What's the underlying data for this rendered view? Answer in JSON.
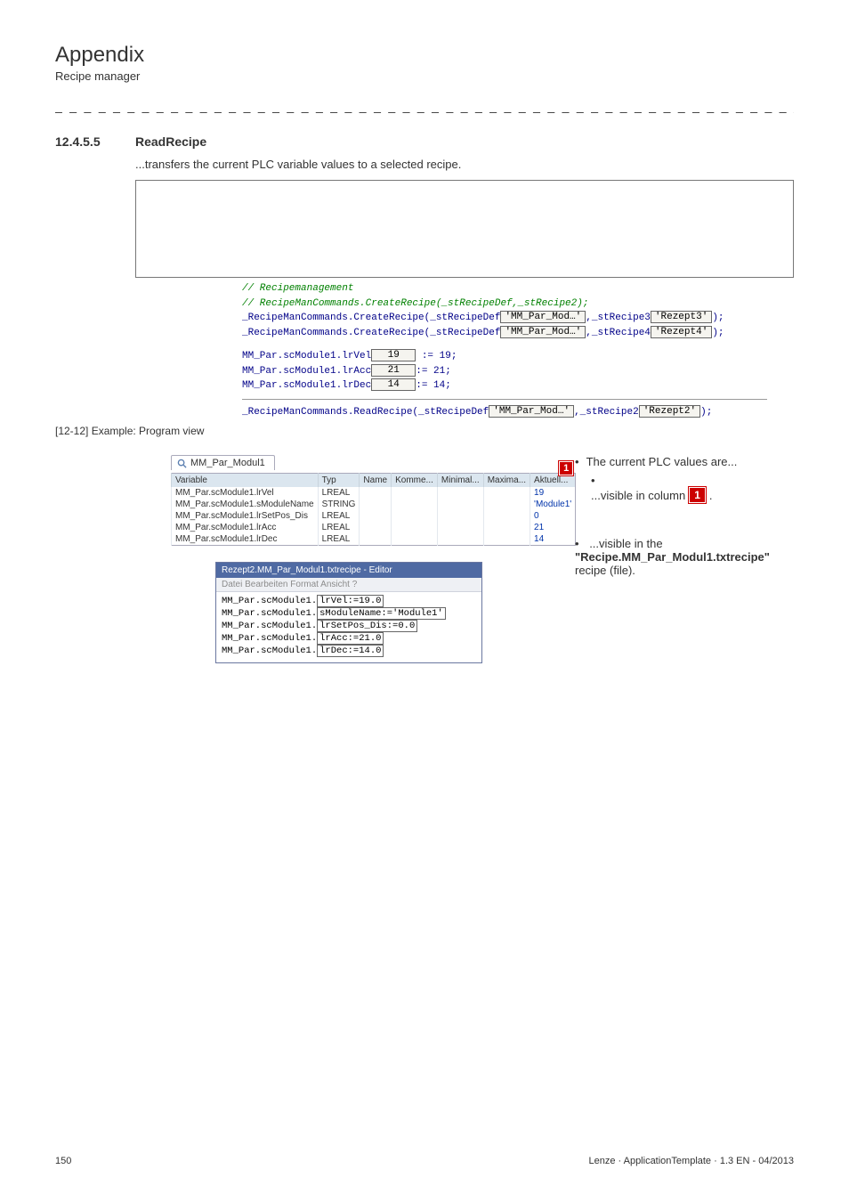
{
  "header": {
    "title": "Appendix",
    "subtitle": "Recipe manager"
  },
  "dash": "_ _ _ _ _ _ _ _ _ _ _ _ _ _ _ _ _ _ _ _ _ _ _ _ _ _ _ _ _ _ _ _ _ _ _ _ _ _ _ _ _ _ _ _ _ _ _ _ _ _ _ _ _ _ _ _ _ _ _ _ _ _ _ _",
  "section": {
    "number": "12.4.5.5",
    "title": "ReadRecipe",
    "desc": "...transfers the current PLC variable values to a selected recipe."
  },
  "code": {
    "c1": "// Recipemanagement",
    "c2": "// RecipeManCommands.CreateRecipe(_stRecipeDef,_stRecipe2);",
    "l1a": "_RecipeManCommands.CreateRecipe(_stRecipeDef",
    "l1b": "'MM_Par_Mod…'",
    "l1c": ",_stRecipe3",
    "l1d": "'Rezept3'",
    "l1e": ");",
    "l2a": "_RecipeManCommands.CreateRecipe(_stRecipeDef",
    "l2b": "'MM_Par_Mod…'",
    "l2c": ",_stRecipe4",
    "l2d": "'Rezept4'",
    "l2e": ");",
    "v1a": "MM_Par.scModule1.lrVel",
    "v1b": "19",
    "v1c": "  := 19;",
    "v2a": "MM_Par.scModule1.lrAcc",
    "v2b": "21",
    "v2c": ":= 21;",
    "v3a": "MM_Par.scModule1.lrDec",
    "v3b": "14",
    "v3c": ":= 14;",
    "r1a": "_RecipeManCommands.ReadRecipe(_stRecipeDef",
    "r1b": "'MM_Par_Mod…'",
    "r1c": ",_stRecipe2",
    "r1d": "'Rezept2'",
    "r1e": ");"
  },
  "caption": "[12-12]  Example: Program view",
  "tab": {
    "label": "MM_Par_Modul1"
  },
  "grid": {
    "headers": [
      "Variable",
      "Typ",
      "Name",
      "Komme...",
      "Minimal...",
      "Maxima...",
      "Aktuell..."
    ],
    "rows": [
      [
        "MM_Par.scModule1.lrVel",
        "LREAL",
        "",
        "",
        "",
        "",
        "19"
      ],
      [
        "MM_Par.scModule1.sModuleName",
        "STRING",
        "",
        "",
        "",
        "",
        "'Module1'"
      ],
      [
        "MM_Par.scModule1.lrSetPos_Dis",
        "LREAL",
        "",
        "",
        "",
        "",
        "0"
      ],
      [
        "MM_Par.scModule1.lrAcc",
        "LREAL",
        "",
        "",
        "",
        "",
        "21"
      ],
      [
        "MM_Par.scModule1.lrDec",
        "LREAL",
        "",
        "",
        "",
        "",
        "14"
      ]
    ],
    "badge": "1"
  },
  "editor": {
    "title": "Rezept2.MM_Par_Modul1.txtrecipe - Editor",
    "menu": "Datei   Bearbeiten   Format   Ansicht   ?",
    "l1a": "MM_Par.scModule1.",
    "l1b": "lrVel:=19.0",
    "l2a": "MM_Par.scModule1.",
    "l2b": "sModuleName:='Module1'",
    "l3a": "MM_Par.scModule1.",
    "l3b": "lrSetPos_Dis:=0.0",
    "l4a": "MM_Par.scModule1.",
    "l4b": "lrAcc:=21.0",
    "l5a": "MM_Par.scModule1.",
    "l5b": "lrDec:=14.0"
  },
  "bullets": {
    "b1": "The current PLC values are...",
    "b1sub_a": "...visible in column ",
    "b1sub_b": ".",
    "badge": "1",
    "b2": "...visible in the",
    "b2b": "\"Recipe.MM_Par_Modul1.txtrecipe\"",
    "b2c": " recipe (file)."
  },
  "footer": {
    "page": "150",
    "right": "Lenze · ApplicationTemplate · 1.3 EN - 04/2013"
  }
}
